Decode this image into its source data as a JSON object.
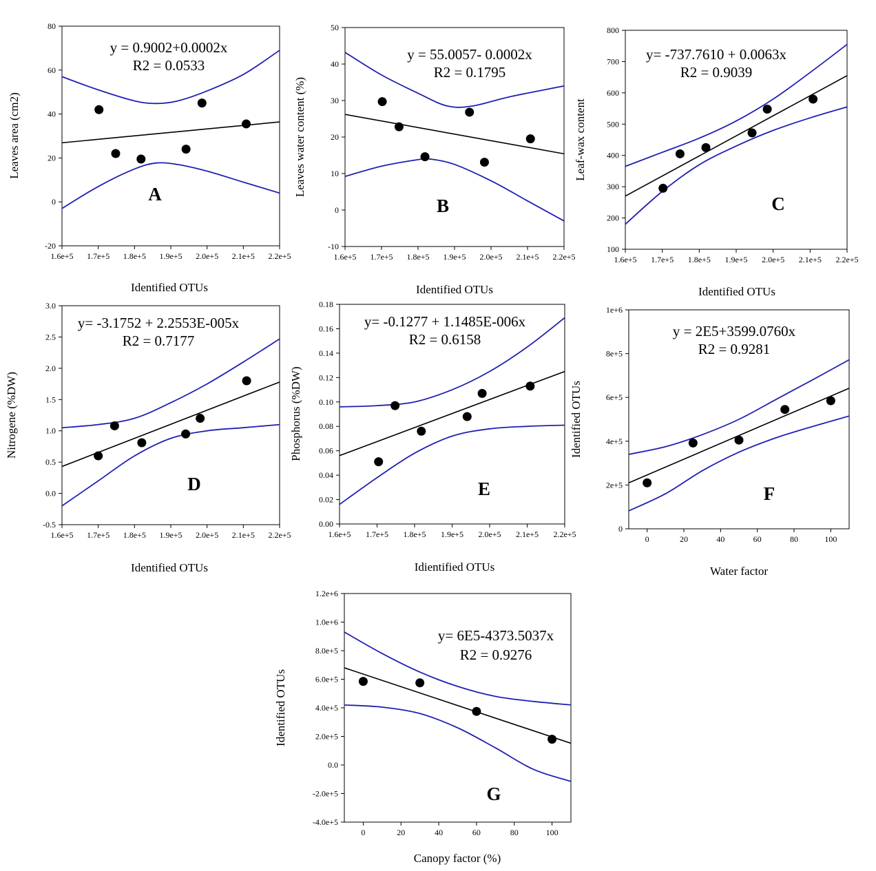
{
  "colors": {
    "fit_line": "#000000",
    "confidence_band": "#1f1fb4",
    "points": "#000000"
  },
  "chart_data": [
    {
      "type": "scatter",
      "panel": "A",
      "xlabel": "Identified OTUs",
      "ylabel": "Leaves area (cm2)",
      "xlim": [
        160000,
        220000
      ],
      "ylim": [
        -20,
        80
      ],
      "xticks": [
        "1.6e+5",
        "1.7e+5",
        "1.8e+5",
        "1.9e+5",
        "2.0e+5",
        "2.1e+5",
        "2.2e+5"
      ],
      "yticks": [
        "-20",
        "0",
        "20",
        "40",
        "60",
        "80"
      ],
      "equation": "y = 0.9002+0.0002x",
      "r2": "R2 = 0.0533",
      "x": [
        170200,
        174800,
        181800,
        194200,
        198600,
        210800
      ],
      "y": [
        42,
        22,
        19.5,
        24,
        45,
        35.5
      ],
      "fit": [
        [
          160000,
          26.9
        ],
        [
          220000,
          36.4
        ]
      ],
      "band_upper": [
        [
          160000,
          57
        ],
        [
          170000,
          51
        ],
        [
          180000,
          46
        ],
        [
          186000,
          44.8
        ],
        [
          192000,
          46
        ],
        [
          200000,
          50.5
        ],
        [
          210000,
          58
        ],
        [
          220000,
          69
        ]
      ],
      "band_lower": [
        [
          160000,
          -3
        ],
        [
          170000,
          7
        ],
        [
          180000,
          15
        ],
        [
          186000,
          17.7
        ],
        [
          192000,
          17
        ],
        [
          200000,
          14
        ],
        [
          210000,
          9
        ],
        [
          220000,
          4
        ]
      ]
    },
    {
      "type": "scatter",
      "panel": "B",
      "xlabel": "Identified OTUs",
      "ylabel": "Leaves water content (%)",
      "xlim": [
        160000,
        220000
      ],
      "ylim": [
        -10,
        50
      ],
      "xticks": [
        "1.6e+5",
        "1.7e+5",
        "1.8e+5",
        "1.9e+5",
        "2.0e+5",
        "2.1e+5",
        "2.2e+5"
      ],
      "yticks": [
        "-10",
        "0",
        "10",
        "20",
        "30",
        "40",
        "50"
      ],
      "equation": "y = 55.0057- 0.0002x",
      "r2": "R2 = 0.1795",
      "x": [
        170200,
        174800,
        181900,
        194100,
        198200,
        210800
      ],
      "y": [
        29.7,
        22.8,
        14.6,
        26.8,
        13.1,
        19.5
      ],
      "fit": [
        [
          160000,
          26.2
        ],
        [
          220000,
          15.4
        ]
      ],
      "band_upper": [
        [
          160000,
          43.2
        ],
        [
          170000,
          37
        ],
        [
          180000,
          32
        ],
        [
          188000,
          28.5
        ],
        [
          195000,
          28.5
        ],
        [
          205000,
          31
        ],
        [
          220000,
          34
        ]
      ],
      "band_lower": [
        [
          160000,
          9.2
        ],
        [
          170000,
          12
        ],
        [
          180000,
          13.8
        ],
        [
          183000,
          14
        ],
        [
          190000,
          12.5
        ],
        [
          200000,
          8
        ],
        [
          210000,
          2.5
        ],
        [
          220000,
          -3
        ]
      ]
    },
    {
      "type": "scatter",
      "panel": "C",
      "xlabel": "Identified OTUs",
      "ylabel": "Leaf-wax content",
      "xlim": [
        160000,
        220000
      ],
      "ylim": [
        100,
        800
      ],
      "xticks": [
        "1.6e+5",
        "1.7e+5",
        "1.8e+5",
        "1.9e+5",
        "2.0e+5",
        "2.1e+5",
        "2.2e+5"
      ],
      "yticks": [
        "100",
        "200",
        "300",
        "400",
        "500",
        "600",
        "700",
        "800"
      ],
      "equation": "y= -737.7610 + 0.0063x",
      "r2": "R2 = 0.9039",
      "x": [
        170200,
        174800,
        181800,
        194300,
        198400,
        210800
      ],
      "y": [
        295,
        405,
        425,
        472,
        548,
        580
      ],
      "fit": [
        [
          160000,
          270
        ],
        [
          220000,
          655
        ]
      ],
      "band_upper": [
        [
          160000,
          365
        ],
        [
          170000,
          410
        ],
        [
          180000,
          455
        ],
        [
          190000,
          510
        ],
        [
          200000,
          580
        ],
        [
          210000,
          665
        ],
        [
          220000,
          755
        ]
      ],
      "band_lower": [
        [
          160000,
          180
        ],
        [
          170000,
          285
        ],
        [
          180000,
          370
        ],
        [
          190000,
          430
        ],
        [
          200000,
          480
        ],
        [
          210000,
          520
        ],
        [
          220000,
          555
        ]
      ]
    },
    {
      "type": "scatter",
      "panel": "D",
      "xlabel": "Identified OTUs",
      "ylabel": "Nitrogene (%DW)",
      "xlim": [
        160000,
        220000
      ],
      "ylim": [
        -0.5,
        3.0
      ],
      "xticks": [
        "1.6e+5",
        "1.7e+5",
        "1.8e+5",
        "1.9e+5",
        "2.0e+5",
        "2.1e+5",
        "2.2e+5"
      ],
      "yticks": [
        "-0.5",
        "0.0",
        "0.5",
        "1.0",
        "1.5",
        "2.0",
        "2.5",
        "3.0"
      ],
      "equation": "y= -3.1752 + 2.2553E-005x",
      "r2": "R2 = 0.7177",
      "x": [
        170000,
        174500,
        182000,
        194100,
        198100,
        210900
      ],
      "y": [
        0.6,
        1.08,
        0.81,
        0.95,
        1.2,
        1.8
      ],
      "fit": [
        [
          160000,
          0.43
        ],
        [
          220000,
          1.78
        ]
      ],
      "band_upper": [
        [
          160000,
          1.05
        ],
        [
          170000,
          1.1
        ],
        [
          180000,
          1.2
        ],
        [
          190000,
          1.45
        ],
        [
          200000,
          1.75
        ],
        [
          210000,
          2.1
        ],
        [
          220000,
          2.47
        ]
      ],
      "band_lower": [
        [
          160000,
          -0.2
        ],
        [
          170000,
          0.2
        ],
        [
          180000,
          0.6
        ],
        [
          190000,
          0.88
        ],
        [
          200000,
          1.0
        ],
        [
          210000,
          1.05
        ],
        [
          220000,
          1.1
        ]
      ]
    },
    {
      "type": "scatter",
      "panel": "E",
      "xlabel": "Idientified OTUs",
      "ylabel": "Phosphorus (%DW)",
      "xlim": [
        160000,
        220000
      ],
      "ylim": [
        0,
        0.18
      ],
      "xticks": [
        "1.6e+5",
        "1.7e+5",
        "1.8e+5",
        "1.9e+5",
        "2.0e+5",
        "2.1e+5",
        "2.2e+5"
      ],
      "yticks": [
        "0.00",
        "0.02",
        "0.04",
        "0.06",
        "0.08",
        "0.10",
        "0.12",
        "0.14",
        "0.16",
        "0.18"
      ],
      "equation": "y= -0.1277 + 1.1485E-006x",
      "r2": "R2 = 0.6158",
      "x": [
        170400,
        174800,
        181800,
        194000,
        198000,
        210800
      ],
      "y": [
        0.051,
        0.097,
        0.076,
        0.088,
        0.107,
        0.113
      ],
      "fit": [
        [
          160000,
          0.056
        ],
        [
          220000,
          0.125
        ]
      ],
      "band_upper": [
        [
          160000,
          0.096
        ],
        [
          170000,
          0.097
        ],
        [
          180000,
          0.1
        ],
        [
          190000,
          0.11
        ],
        [
          200000,
          0.125
        ],
        [
          210000,
          0.145
        ],
        [
          220000,
          0.169
        ]
      ],
      "band_lower": [
        [
          160000,
          0.016
        ],
        [
          170000,
          0.038
        ],
        [
          180000,
          0.058
        ],
        [
          190000,
          0.072
        ],
        [
          200000,
          0.078
        ],
        [
          210000,
          0.08
        ],
        [
          220000,
          0.081
        ]
      ]
    },
    {
      "type": "scatter",
      "panel": "F",
      "xlabel": "Water factor",
      "ylabel": "Identified OTUs",
      "xlim": [
        -10,
        110
      ],
      "ylim": [
        0,
        1000000
      ],
      "xticks": [
        "0",
        "20",
        "40",
        "60",
        "80",
        "100"
      ],
      "yticks": [
        "0",
        "2e+5",
        "4e+5",
        "6e+5",
        "8e+5",
        "1e+6"
      ],
      "equation": "y = 2E5+3599.0760x",
      "r2": "R2 = 0.9281",
      "x": [
        0,
        25,
        50,
        75,
        100
      ],
      "y": [
        210000,
        392000,
        405000,
        545000,
        585000
      ],
      "fit": [
        [
          -10,
          210000
        ],
        [
          110,
          642000
        ]
      ],
      "band_upper": [
        [
          -10,
          340000
        ],
        [
          10,
          375000
        ],
        [
          30,
          430000
        ],
        [
          50,
          500000
        ],
        [
          70,
          590000
        ],
        [
          90,
          680000
        ],
        [
          110,
          772000
        ]
      ],
      "band_lower": [
        [
          -10,
          82000
        ],
        [
          10,
          160000
        ],
        [
          30,
          265000
        ],
        [
          50,
          350000
        ],
        [
          70,
          415000
        ],
        [
          90,
          467000
        ],
        [
          110,
          515000
        ]
      ]
    },
    {
      "type": "scatter",
      "panel": "G",
      "xlabel": "Canopy factor (%)",
      "ylabel": "Identified OTUs",
      "xlim": [
        -10,
        110
      ],
      "ylim": [
        -400000,
        1200000
      ],
      "xticks": [
        "0",
        "20",
        "40",
        "60",
        "80",
        "100"
      ],
      "yticks": [
        "-4.0e+5",
        "-2.0e+5",
        "0.0",
        "2.0e+5",
        "4.0e+5",
        "6.0e+5",
        "8.0e+5",
        "1.0e+6",
        "1.2e+6"
      ],
      "equation": "y= 6E5-4373.5037x",
      "r2": "R2 = 0.9276",
      "x": [
        0,
        30,
        60,
        100
      ],
      "y": [
        585000,
        575000,
        375000,
        180000
      ],
      "fit": [
        [
          -10,
          680000
        ],
        [
          110,
          152000
        ]
      ],
      "band_upper": [
        [
          -10,
          930000
        ],
        [
          10,
          780000
        ],
        [
          30,
          650000
        ],
        [
          50,
          550000
        ],
        [
          70,
          480000
        ],
        [
          90,
          445000
        ],
        [
          110,
          420000
        ]
      ],
      "band_lower": [
        [
          -10,
          420000
        ],
        [
          10,
          405000
        ],
        [
          30,
          360000
        ],
        [
          50,
          260000
        ],
        [
          70,
          120000
        ],
        [
          90,
          -30000
        ],
        [
          110,
          -115000
        ]
      ]
    }
  ]
}
